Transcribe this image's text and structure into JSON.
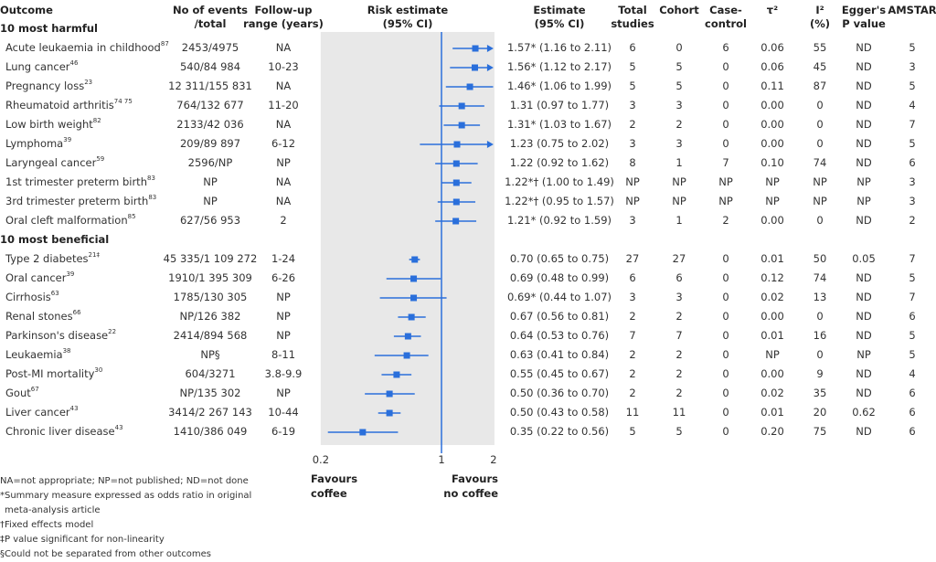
{
  "headers": {
    "outcome": "Outcome",
    "events": [
      "No of events",
      "/total"
    ],
    "followup": [
      "Follow-up",
      "range (years)"
    ],
    "risk": [
      "Risk estimate",
      "(95% CI)"
    ],
    "estimate": [
      "Estimate",
      "(95% CI)"
    ],
    "total": [
      "Total",
      "studies"
    ],
    "cohort": [
      "Cohort",
      ""
    ],
    "casecontrol": [
      "Case-",
      "control"
    ],
    "tau": [
      "τ²",
      ""
    ],
    "i2": [
      "I²",
      "(%)"
    ],
    "egger": [
      "Egger's",
      "P value"
    ],
    "amstar": [
      "AMSTAR",
      ""
    ]
  },
  "chart_data": {
    "type": "forest",
    "xscale": "log",
    "xlim": [
      0.2,
      2
    ],
    "xticks": [
      "0.2",
      "1",
      "2"
    ],
    "reference_line": 1,
    "xlabel_left": [
      "Favours",
      "coffee"
    ],
    "xlabel_right": [
      "Favours",
      "no coffee"
    ],
    "colors": {
      "marker": "#2a6fdb",
      "panel": "#e8e8e8"
    },
    "sections": [
      {
        "title": "10 most harmful",
        "rows": [
          {
            "outcome": "Acute leukaemia in childhood",
            "ref": "87",
            "events": "2453/4975",
            "followup": "NA",
            "est": 1.57,
            "lo": 1.16,
            "hi": 2.11,
            "estimate_text": "1.57* (1.16 to 2.11)",
            "total": "6",
            "cohort": "0",
            "cc": "6",
            "tau": "0.06",
            "i2": "55",
            "egger": "ND",
            "amstar": "5"
          },
          {
            "outcome": "Lung cancer",
            "ref": "46",
            "events": "540/84 984",
            "followup": "10-23",
            "est": 1.56,
            "lo": 1.12,
            "hi": 2.17,
            "estimate_text": "1.56* (1.12 to 2.17)",
            "total": "5",
            "cohort": "5",
            "cc": "0",
            "tau": "0.06",
            "i2": "45",
            "egger": "ND",
            "amstar": "3"
          },
          {
            "outcome": "Pregnancy loss",
            "ref": "23",
            "events": "12 311/155 831",
            "followup": "NA",
            "est": 1.46,
            "lo": 1.06,
            "hi": 1.99,
            "estimate_text": "1.46* (1.06 to 1.99)",
            "total": "5",
            "cohort": "5",
            "cc": "0",
            "tau": "0.11",
            "i2": "87",
            "egger": "ND",
            "amstar": "5"
          },
          {
            "outcome": "Rheumatoid arthritis",
            "ref": "74 75",
            "events": "764/132 677",
            "followup": "11-20",
            "est": 1.31,
            "lo": 0.97,
            "hi": 1.77,
            "estimate_text": "1.31 (0.97 to 1.77)",
            "total": "3",
            "cohort": "3",
            "cc": "0",
            "tau": "0.00",
            "i2": "0",
            "egger": "ND",
            "amstar": "4"
          },
          {
            "outcome": "Low birth weight",
            "ref": "82",
            "events": "2133/42 036",
            "followup": "NA",
            "est": 1.31,
            "lo": 1.03,
            "hi": 1.67,
            "estimate_text": "1.31* (1.03 to 1.67)",
            "total": "2",
            "cohort": "2",
            "cc": "0",
            "tau": "0.00",
            "i2": "0",
            "egger": "ND",
            "amstar": "7"
          },
          {
            "outcome": "Lymphoma",
            "ref": "39",
            "events": "209/89 897",
            "followup": "6-12",
            "est": 1.23,
            "lo": 0.75,
            "hi": 2.02,
            "estimate_text": "1.23 (0.75 to 2.02)",
            "total": "3",
            "cohort": "3",
            "cc": "0",
            "tau": "0.00",
            "i2": "0",
            "egger": "ND",
            "amstar": "5"
          },
          {
            "outcome": "Laryngeal cancer",
            "ref": "59",
            "events": "2596/NP",
            "followup": "NP",
            "est": 1.22,
            "lo": 0.92,
            "hi": 1.62,
            "estimate_text": "1.22 (0.92 to 1.62)",
            "total": "8",
            "cohort": "1",
            "cc": "7",
            "tau": "0.10",
            "i2": "74",
            "egger": "ND",
            "amstar": "6"
          },
          {
            "outcome": "1st trimester preterm birth",
            "ref": "83",
            "events": "NP",
            "followup": "NA",
            "est": 1.22,
            "lo": 1.0,
            "hi": 1.49,
            "estimate_text": "1.22*† (1.00 to 1.49)",
            "total": "NP",
            "cohort": "NP",
            "cc": "NP",
            "tau": "NP",
            "i2": "NP",
            "egger": "NP",
            "amstar": "3"
          },
          {
            "outcome": "3rd trimester preterm birth",
            "ref": "83",
            "events": "NP",
            "followup": "NA",
            "est": 1.22,
            "lo": 0.95,
            "hi": 1.57,
            "estimate_text": "1.22*† (0.95 to 1.57)",
            "total": "NP",
            "cohort": "NP",
            "cc": "NP",
            "tau": "NP",
            "i2": "NP",
            "egger": "NP",
            "amstar": "3"
          },
          {
            "outcome": "Oral cleft malformation",
            "ref": "85",
            "events": "627/56 953",
            "followup": "2",
            "est": 1.21,
            "lo": 0.92,
            "hi": 1.59,
            "estimate_text": "1.21* (0.92 to 1.59)",
            "total": "3",
            "cohort": "1",
            "cc": "2",
            "tau": "0.00",
            "i2": "0",
            "egger": "ND",
            "amstar": "2"
          }
        ]
      },
      {
        "title": "10 most beneficial",
        "rows": [
          {
            "outcome": "Type 2 diabetes",
            "ref": "21‡",
            "events": "45 335/1 109 272",
            "followup": "1-24",
            "est": 0.7,
            "lo": 0.65,
            "hi": 0.75,
            "estimate_text": "0.70 (0.65 to 0.75)",
            "total": "27",
            "cohort": "27",
            "cc": "0",
            "tau": "0.01",
            "i2": "50",
            "egger": "0.05",
            "amstar": "7"
          },
          {
            "outcome": "Oral cancer",
            "ref": "39",
            "events": "1910/1 395 309",
            "followup": "6-26",
            "est": 0.69,
            "lo": 0.48,
            "hi": 0.99,
            "estimate_text": "0.69 (0.48 to 0.99)",
            "total": "6",
            "cohort": "6",
            "cc": "0",
            "tau": "0.12",
            "i2": "74",
            "egger": "ND",
            "amstar": "5"
          },
          {
            "outcome": "Cirrhosis",
            "ref": "63",
            "events": "1785/130 305",
            "followup": "NP",
            "est": 0.69,
            "lo": 0.44,
            "hi": 1.07,
            "estimate_text": "0.69* (0.44 to 1.07)",
            "total": "3",
            "cohort": "3",
            "cc": "0",
            "tau": "0.02",
            "i2": "13",
            "egger": "ND",
            "amstar": "7"
          },
          {
            "outcome": "Renal stones",
            "ref": "66",
            "events": "NP/126 382",
            "followup": "NP",
            "est": 0.67,
            "lo": 0.56,
            "hi": 0.81,
            "estimate_text": "0.67 (0.56 to 0.81)",
            "total": "2",
            "cohort": "2",
            "cc": "0",
            "tau": "0.00",
            "i2": "0",
            "egger": "ND",
            "amstar": "6"
          },
          {
            "outcome": "Parkinson's disease",
            "ref": "22",
            "events": "2414/894 568",
            "followup": "NP",
            "est": 0.64,
            "lo": 0.53,
            "hi": 0.76,
            "estimate_text": "0.64 (0.53 to 0.76)",
            "total": "7",
            "cohort": "7",
            "cc": "0",
            "tau": "0.01",
            "i2": "16",
            "egger": "ND",
            "amstar": "5"
          },
          {
            "outcome": "Leukaemia",
            "ref": "38",
            "events": "NP§",
            "followup": "8-11",
            "est": 0.63,
            "lo": 0.41,
            "hi": 0.84,
            "estimate_text": "0.63 (0.41 to 0.84)",
            "total": "2",
            "cohort": "2",
            "cc": "0",
            "tau": "NP",
            "i2": "0",
            "egger": "NP",
            "amstar": "5"
          },
          {
            "outcome": "Post-MI mortality",
            "ref": "30",
            "events": "604/3271",
            "followup": "3.8-9.9",
            "est": 0.55,
            "lo": 0.45,
            "hi": 0.67,
            "estimate_text": "0.55 (0.45 to 0.67)",
            "total": "2",
            "cohort": "2",
            "cc": "0",
            "tau": "0.00",
            "i2": "9",
            "egger": "ND",
            "amstar": "4"
          },
          {
            "outcome": "Gout",
            "ref": "67",
            "events": "NP/135 302",
            "followup": "NP",
            "est": 0.5,
            "lo": 0.36,
            "hi": 0.7,
            "estimate_text": "0.50 (0.36 to 0.70)",
            "total": "2",
            "cohort": "2",
            "cc": "0",
            "tau": "0.02",
            "i2": "35",
            "egger": "ND",
            "amstar": "6"
          },
          {
            "outcome": "Liver cancer",
            "ref": "43",
            "events": "3414/2 267 143",
            "followup": "10-44",
            "est": 0.5,
            "lo": 0.43,
            "hi": 0.58,
            "estimate_text": "0.50 (0.43 to 0.58)",
            "total": "11",
            "cohort": "11",
            "cc": "0",
            "tau": "0.01",
            "i2": "20",
            "egger": "0.62",
            "amstar": "6"
          },
          {
            "outcome": "Chronic liver disease",
            "ref": "43",
            "events": "1410/386 049",
            "followup": "6-19",
            "est": 0.35,
            "lo": 0.22,
            "hi": 0.56,
            "estimate_text": "0.35 (0.22 to 0.56)",
            "total": "5",
            "cohort": "5",
            "cc": "0",
            "tau": "0.20",
            "i2": "75",
            "egger": "ND",
            "amstar": "6"
          }
        ]
      }
    ]
  },
  "footnotes": [
    "NA=not appropriate; NP=not published; ND=not done",
    "*Summary measure expressed as odds ratio in original",
    " meta-analysis article",
    "†Fixed effects model",
    "‡P value significant for non-linearity",
    "§Could not be separated from other outcomes"
  ]
}
